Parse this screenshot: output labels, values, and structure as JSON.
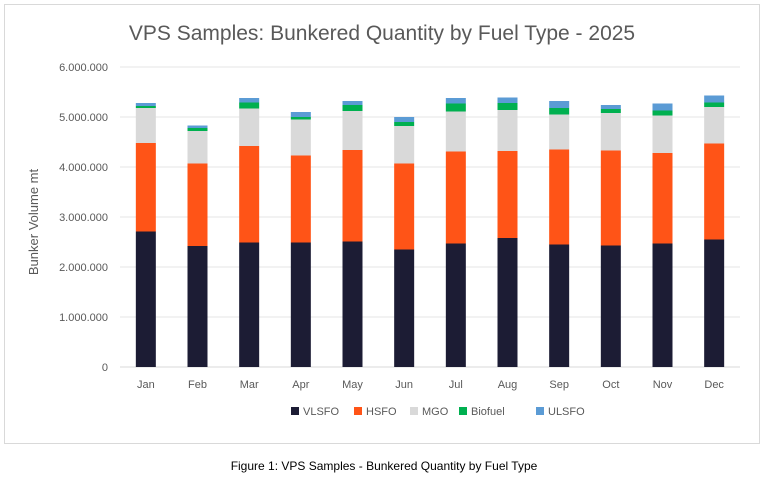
{
  "chart_data": {
    "type": "bar",
    "stacked": true,
    "title": "VPS Samples: Bunkered Quantity by Fuel Type - 2025",
    "xlabel": "",
    "ylabel": "Bunker Volume mt",
    "ylim": [
      0,
      6000000
    ],
    "yticks": [
      0,
      1000000,
      2000000,
      3000000,
      4000000,
      5000000,
      6000000
    ],
    "ytick_labels": [
      "0",
      "1.000.000",
      "2.000.000",
      "3.000.000",
      "4.000.000",
      "5.000.000",
      "6.000.000"
    ],
    "grid": true,
    "legend_position": "bottom",
    "categories": [
      "Jan",
      "Feb",
      "Mar",
      "Apr",
      "May",
      "Jun",
      "Jul",
      "Aug",
      "Sep",
      "Oct",
      "Nov",
      "Dec"
    ],
    "series": [
      {
        "name": "VLSFO",
        "color": "#1c1c34",
        "values": [
          2710000,
          2420000,
          2490000,
          2490000,
          2510000,
          2350000,
          2470000,
          2580000,
          2450000,
          2430000,
          2470000,
          2550000
        ]
      },
      {
        "name": "HSFO",
        "color": "#ff5417",
        "values": [
          1770000,
          1650000,
          1930000,
          1740000,
          1830000,
          1720000,
          1840000,
          1740000,
          1900000,
          1900000,
          1810000,
          1920000
        ]
      },
      {
        "name": "MGO",
        "color": "#d9d9d9",
        "values": [
          700000,
          650000,
          750000,
          720000,
          780000,
          750000,
          800000,
          820000,
          700000,
          750000,
          750000,
          730000
        ]
      },
      {
        "name": "Biofuel",
        "color": "#00b050",
        "values": [
          40000,
          60000,
          120000,
          50000,
          120000,
          80000,
          160000,
          140000,
          130000,
          80000,
          100000,
          90000
        ]
      },
      {
        "name": "ULSFO",
        "color": "#5b9bd5",
        "values": [
          60000,
          50000,
          90000,
          100000,
          80000,
          100000,
          110000,
          110000,
          140000,
          80000,
          140000,
          140000
        ]
      }
    ]
  },
  "caption": "Figure 1: VPS Samples - Bunkered Quantity by Fuel Type"
}
